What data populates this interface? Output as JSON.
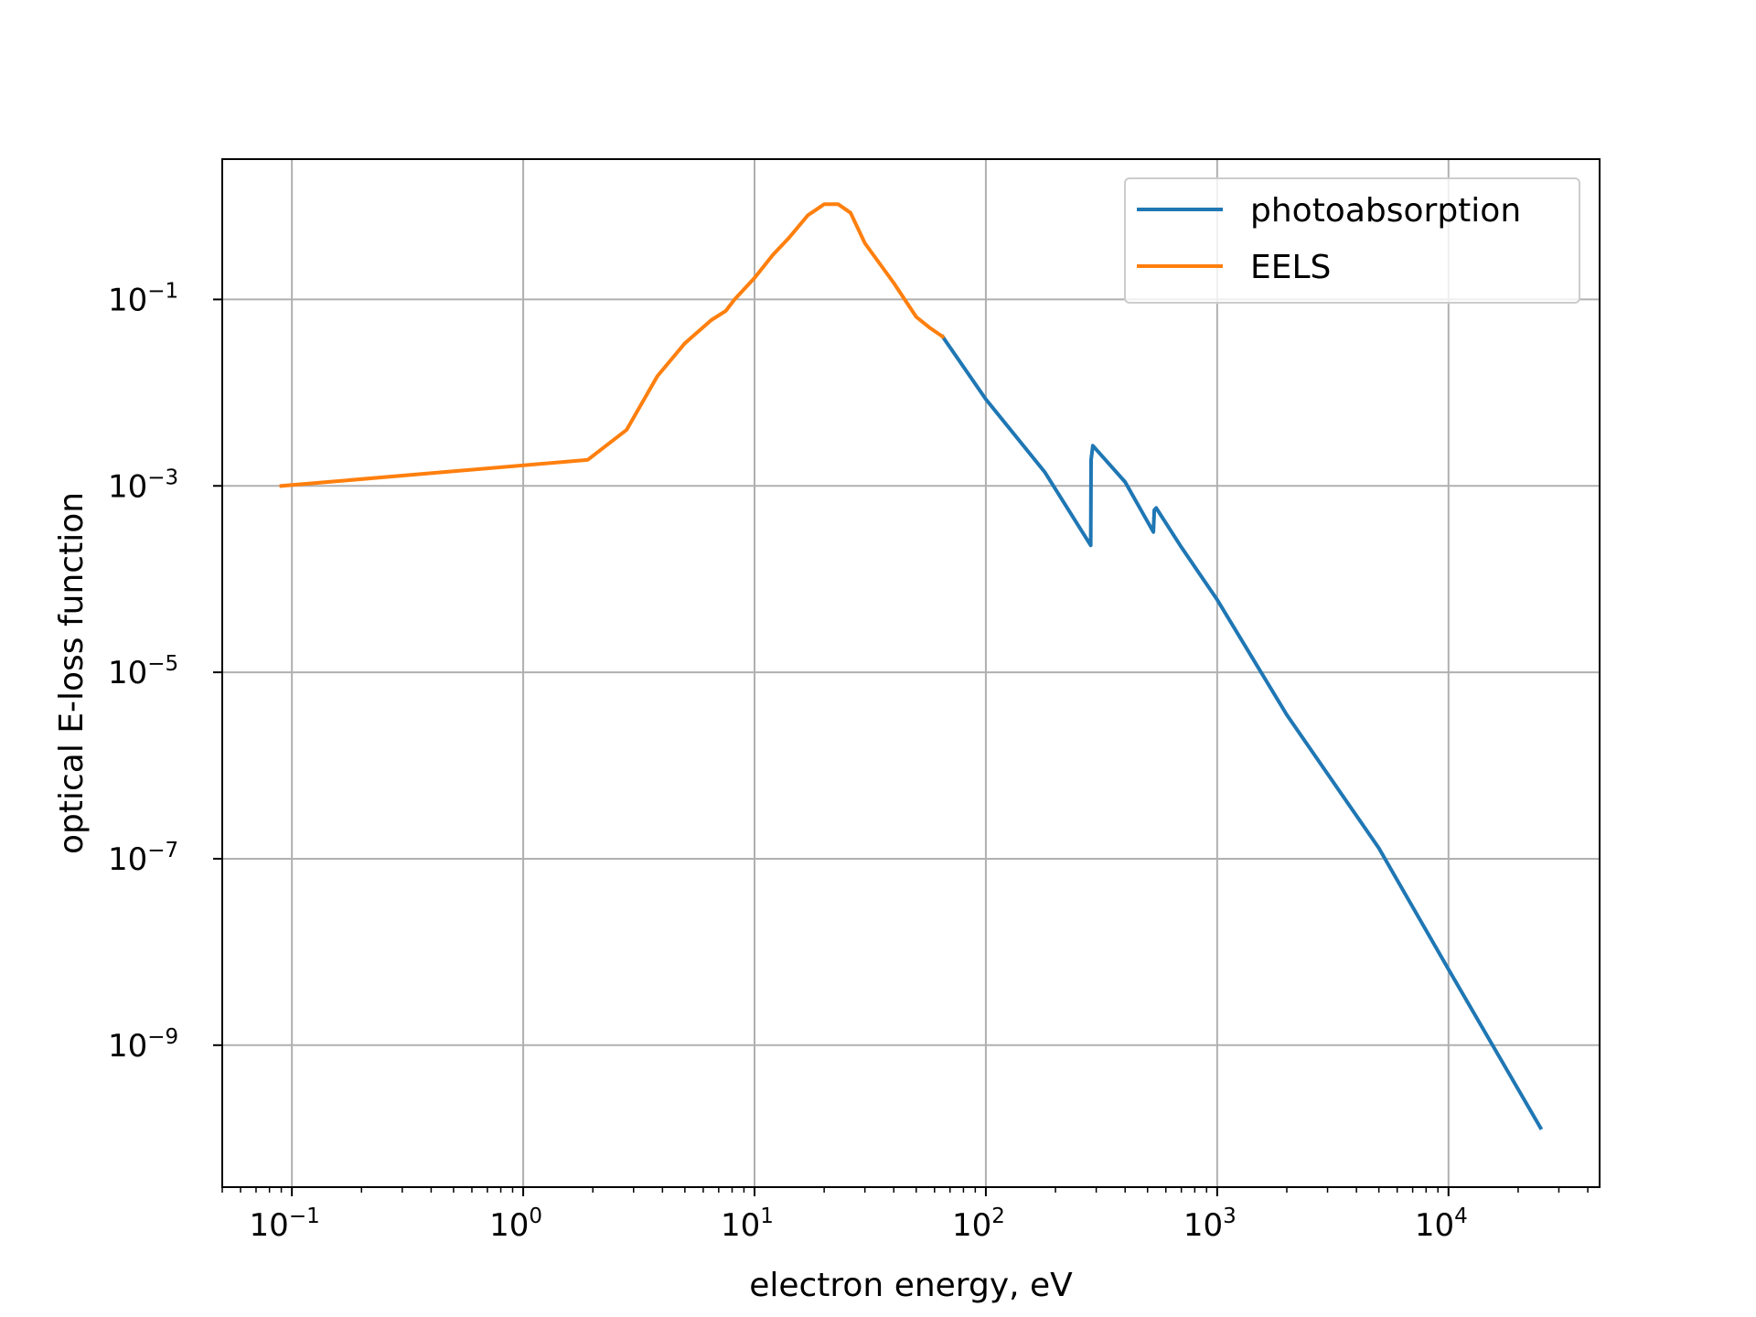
{
  "chart_data": {
    "type": "line",
    "xlabel": "electron energy, eV",
    "ylabel": "optical E-loss function",
    "xscale": "log",
    "yscale": "log",
    "xlim": [
      0.05,
      45000
    ],
    "ylim": [
      3e-11,
      3.2
    ],
    "grid": true,
    "legend_position": "top-right",
    "x_ticks": [
      {
        "base": "10",
        "exp": "−1"
      },
      {
        "base": "10",
        "exp": "0"
      },
      {
        "base": "10",
        "exp": "1"
      },
      {
        "base": "10",
        "exp": "2"
      },
      {
        "base": "10",
        "exp": "3"
      },
      {
        "base": "10",
        "exp": "4"
      }
    ],
    "y_ticks": [
      {
        "base": "10",
        "exp": "−1"
      },
      {
        "base": "10",
        "exp": "−3"
      },
      {
        "base": "10",
        "exp": "−5"
      },
      {
        "base": "10",
        "exp": "−7"
      },
      {
        "base": "10",
        "exp": "−9"
      }
    ],
    "series": [
      {
        "name": "photoabsorption",
        "color": "#1f77b4",
        "x": [
          65,
          100,
          180,
          284,
          285,
          290,
          400,
          530,
          535,
          545,
          700,
          1000,
          2000,
          5000,
          10000,
          25000
        ],
        "y": [
          0.04,
          0.0085,
          0.0014,
          0.00023,
          0.0019,
          0.0027,
          0.0011,
          0.00032,
          0.00055,
          0.00058,
          0.00022,
          6e-05,
          3.5e-06,
          1.3e-07,
          6.5e-09,
          1.3e-10
        ]
      },
      {
        "name": "EELS",
        "color": "#ff7f0e",
        "x": [
          0.09,
          1.9,
          2.8,
          3.8,
          5,
          6.5,
          7.5,
          8.2,
          10,
          12,
          14,
          17,
          20,
          23,
          26,
          30,
          40,
          50,
          57,
          65
        ],
        "y": [
          0.001,
          0.0019,
          0.004,
          0.015,
          0.034,
          0.06,
          0.075,
          0.1,
          0.17,
          0.3,
          0.45,
          0.8,
          1.05,
          1.05,
          0.85,
          0.4,
          0.15,
          0.065,
          0.05,
          0.04
        ]
      }
    ]
  }
}
